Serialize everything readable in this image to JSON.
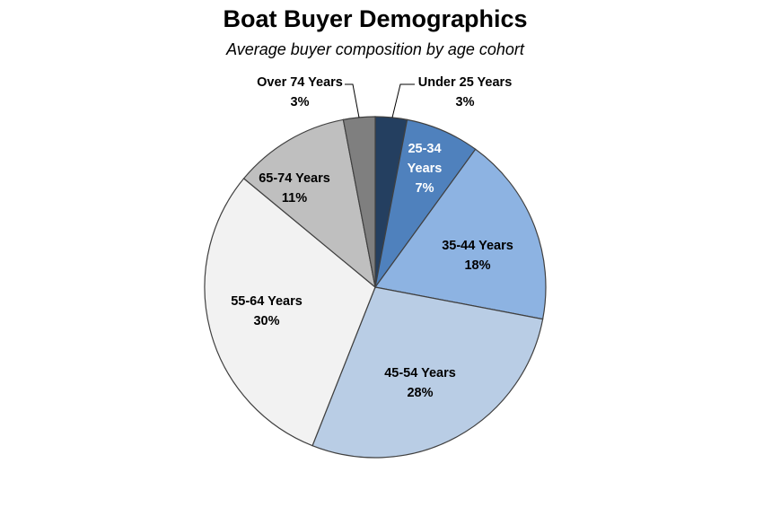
{
  "chart_data": {
    "type": "pie",
    "title": "Boat Buyer Demographics",
    "subtitle": "Average buyer composition by age cohort",
    "slices": [
      {
        "label": "Under 25 Years",
        "value": 3,
        "display": "3%",
        "color": "#243f60",
        "text_color": "#000000"
      },
      {
        "label": "25-34 Years",
        "value": 7,
        "display": "7%",
        "color": "#4f81bd",
        "text_color": "#ffffff"
      },
      {
        "label": "35-44 Years",
        "value": 18,
        "display": "18%",
        "color": "#8db3e2",
        "text_color": "#000000"
      },
      {
        "label": "45-54 Years",
        "value": 28,
        "display": "28%",
        "color": "#b9cde5",
        "text_color": "#000000"
      },
      {
        "label": "55-64 Years",
        "value": 30,
        "display": "30%",
        "color": "#f2f2f2",
        "text_color": "#000000"
      },
      {
        "label": "65-74 Years",
        "value": 11,
        "display": "11%",
        "color": "#bfbfbf",
        "text_color": "#000000"
      },
      {
        "label": "Over 74 Years",
        "value": 3,
        "display": "3%",
        "color": "#7f7f7f",
        "text_color": "#000000"
      }
    ],
    "legend": "none",
    "start_angle": "12 o'clock",
    "direction": "clockwise"
  }
}
